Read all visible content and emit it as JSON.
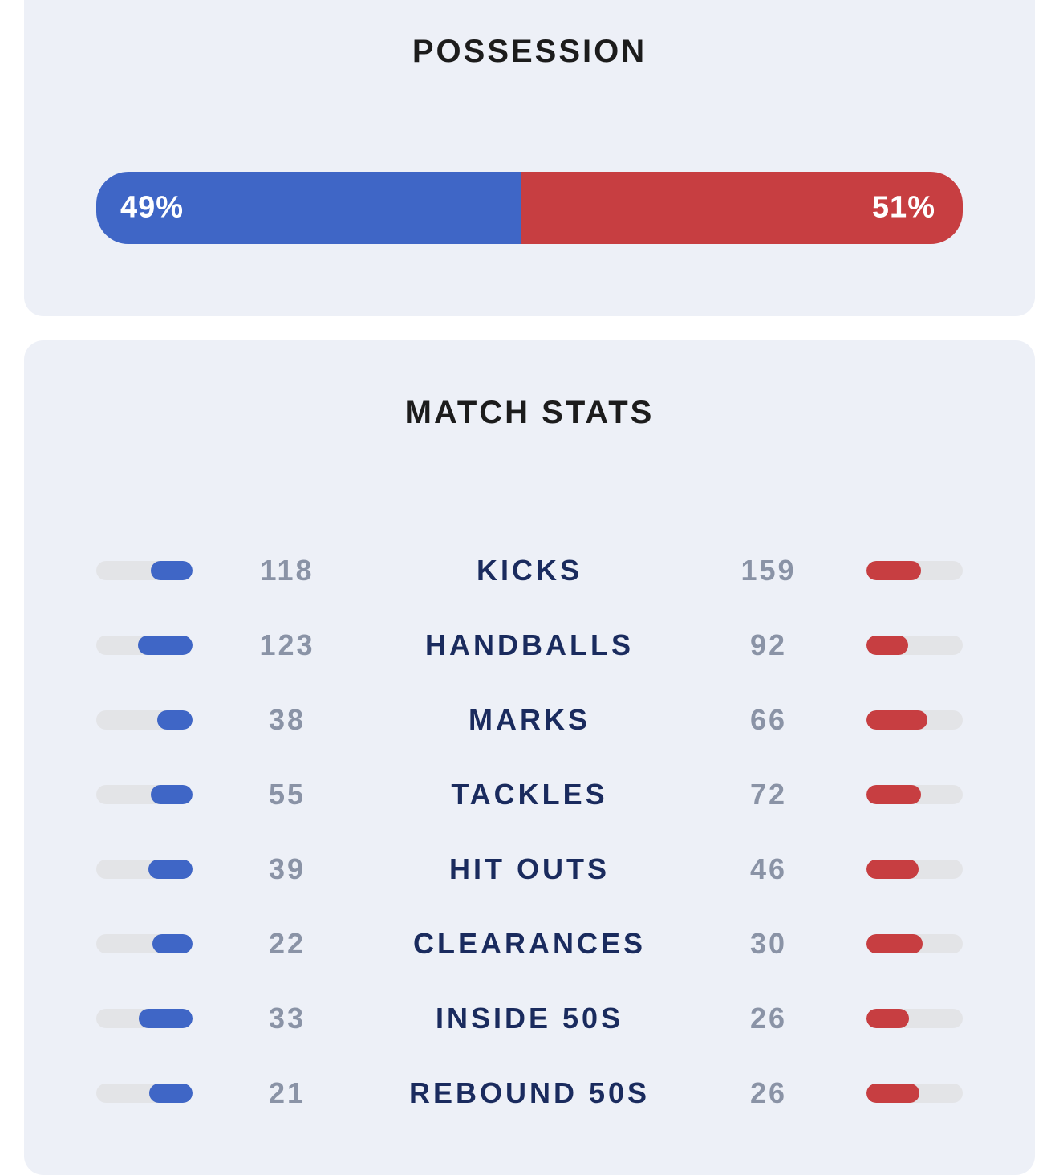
{
  "colors": {
    "home": "#3f66c6",
    "away": "#c73e41",
    "track": "#e3e4e7",
    "card_bg": "#edf0f7"
  },
  "possession": {
    "title": "POSSESSION",
    "home_pct": 49,
    "away_pct": 51,
    "home_label": "49%",
    "away_label": "51%"
  },
  "match_stats": {
    "title": "MATCH STATS",
    "rows": [
      {
        "label": "KICKS",
        "home": "118",
        "away": "159",
        "home_share": 0.43,
        "away_share": 0.57
      },
      {
        "label": "HANDBALLS",
        "home": "123",
        "away": "92",
        "home_share": 0.57,
        "away_share": 0.43
      },
      {
        "label": "MARKS",
        "home": "38",
        "away": "66",
        "home_share": 0.37,
        "away_share": 0.63
      },
      {
        "label": "TACKLES",
        "home": "55",
        "away": "72",
        "home_share": 0.43,
        "away_share": 0.57
      },
      {
        "label": "HIT OUTS",
        "home": "39",
        "away": "46",
        "home_share": 0.46,
        "away_share": 0.54
      },
      {
        "label": "CLEARANCES",
        "home": "22",
        "away": "30",
        "home_share": 0.42,
        "away_share": 0.58
      },
      {
        "label": "INSIDE 50S",
        "home": "33",
        "away": "26",
        "home_share": 0.56,
        "away_share": 0.44
      },
      {
        "label": "REBOUND 50S",
        "home": "21",
        "away": "26",
        "home_share": 0.45,
        "away_share": 0.55
      }
    ]
  }
}
